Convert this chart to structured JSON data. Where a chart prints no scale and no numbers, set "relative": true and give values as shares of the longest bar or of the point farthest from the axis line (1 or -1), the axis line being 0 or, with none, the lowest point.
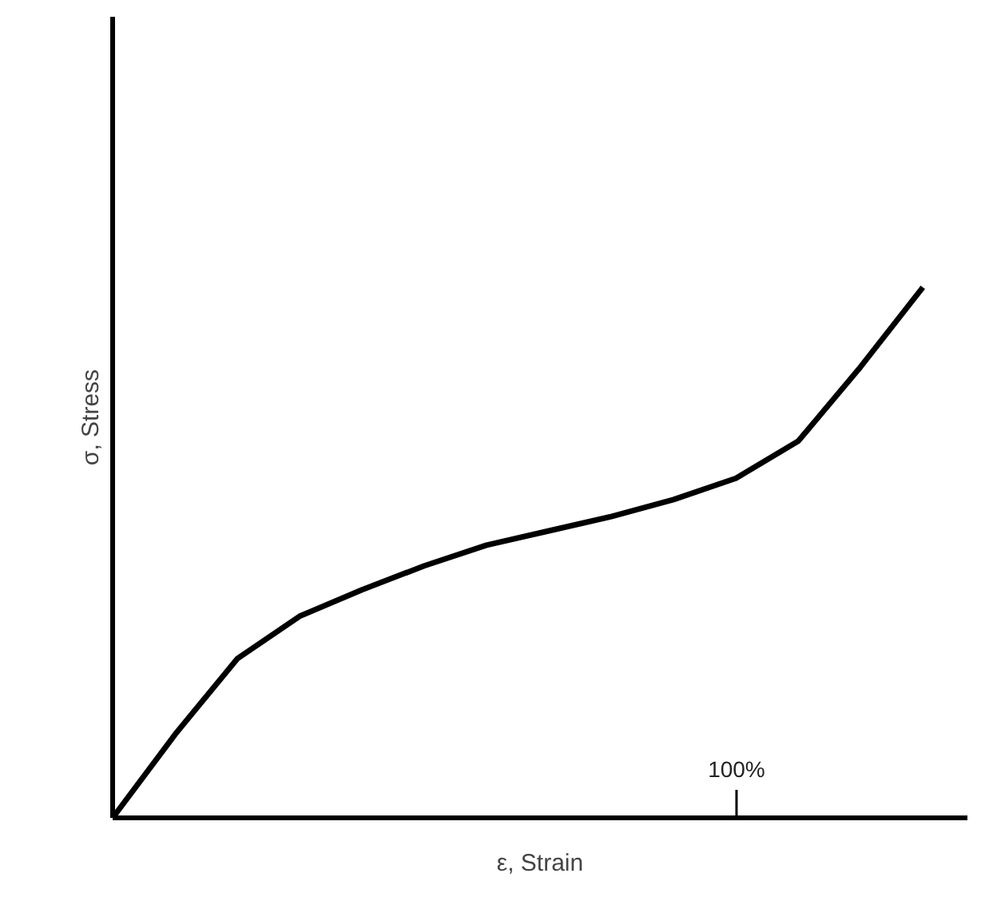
{
  "chart_data": {
    "type": "line",
    "xlabel": "ε, Strain",
    "ylabel": "σ, Stress",
    "relative": true,
    "annotations": [
      "100%"
    ],
    "categories": [
      null,
      null,
      null,
      null,
      null,
      null,
      null,
      null,
      null,
      null,
      null,
      null,
      null,
      null
    ],
    "series": [
      {
        "color": "#000000",
        "values": [
          0,
          0.157,
          0.3,
          0.38,
          0.43,
          0.475,
          0.514,
          0.541,
          0.568,
          0.6,
          0.64,
          0.71,
          0.85,
          1.0
        ]
      }
    ],
    "marker": "none",
    "line_style": "solid"
  }
}
